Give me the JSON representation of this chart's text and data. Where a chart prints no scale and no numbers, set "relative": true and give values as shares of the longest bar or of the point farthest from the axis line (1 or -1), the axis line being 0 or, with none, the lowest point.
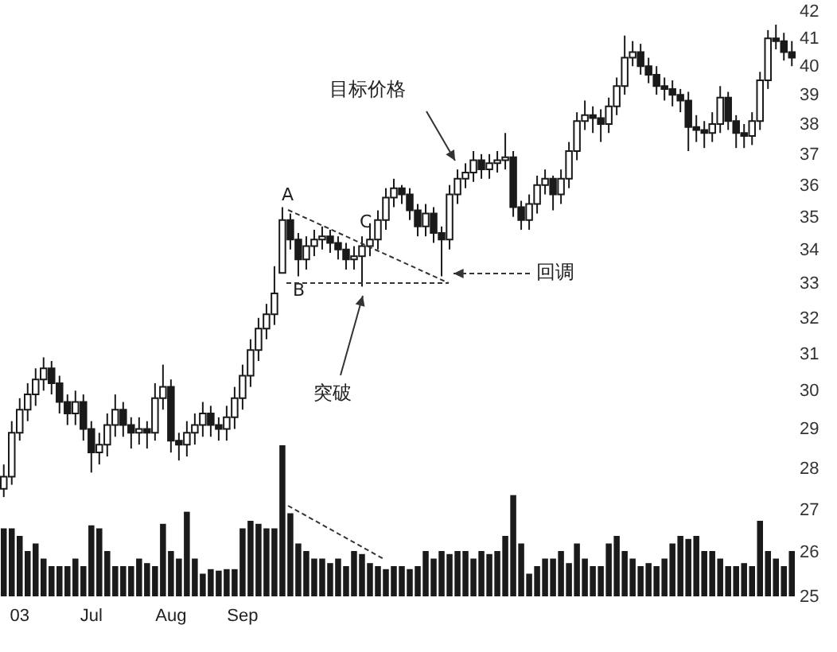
{
  "chart_data": [
    {
      "type": "candlestick",
      "color": "#1a1a1a",
      "log": true,
      "ylim": [
        25,
        42
      ],
      "yticks": [
        25,
        26,
        27,
        28,
        29,
        30,
        31,
        32,
        33,
        34,
        35,
        36,
        37,
        38,
        39,
        40,
        41,
        42
      ],
      "annotations": [
        "A",
        "B",
        "C",
        "目标价格",
        "突破",
        "回调"
      ],
      "categories": [
        null,
        null,
        "03",
        null,
        null,
        null,
        null,
        null,
        null,
        null,
        null,
        "Jul",
        null,
        null,
        null,
        null,
        null,
        null,
        null,
        null,
        null,
        "Aug",
        null,
        null,
        null,
        null,
        null,
        null,
        null,
        null,
        "Sep",
        null,
        null,
        null,
        null,
        null,
        null,
        null,
        null,
        null,
        null,
        null,
        null,
        null,
        null,
        null,
        null,
        null,
        null,
        null,
        null,
        null,
        null,
        null,
        null,
        null,
        null,
        null,
        null,
        null,
        null,
        null,
        null,
        null,
        null,
        null,
        null,
        null,
        null,
        null,
        null,
        null,
        null,
        null,
        null,
        null,
        null,
        null,
        null,
        null,
        null,
        null,
        null,
        null,
        null,
        null,
        null,
        null,
        null,
        null,
        null,
        null,
        null,
        null,
        null,
        null,
        null,
        null,
        null,
        null
      ],
      "ohlc": [
        [
          27.5,
          28.1,
          27.3,
          27.8
        ],
        [
          27.8,
          29.2,
          27.6,
          28.9
        ],
        [
          28.9,
          29.8,
          28.7,
          29.5
        ],
        [
          29.5,
          30.2,
          29.2,
          29.9
        ],
        [
          29.9,
          30.6,
          29.6,
          30.3
        ],
        [
          30.3,
          30.9,
          30.0,
          30.6
        ],
        [
          30.6,
          30.8,
          29.9,
          30.2
        ],
        [
          30.2,
          30.4,
          29.4,
          29.7
        ],
        [
          29.7,
          29.9,
          29.1,
          29.4
        ],
        [
          29.4,
          30.0,
          29.1,
          29.7
        ],
        [
          29.7,
          29.9,
          28.7,
          29.0
        ],
        [
          29.0,
          29.2,
          27.9,
          28.4
        ],
        [
          28.4,
          28.9,
          28.1,
          28.6
        ],
        [
          28.6,
          29.4,
          28.3,
          29.1
        ],
        [
          29.1,
          29.9,
          28.8,
          29.5
        ],
        [
          29.5,
          29.7,
          28.8,
          29.1
        ],
        [
          29.1,
          29.3,
          28.5,
          28.9
        ],
        [
          28.9,
          29.3,
          28.6,
          29.0
        ],
        [
          29.0,
          29.2,
          28.5,
          28.9
        ],
        [
          28.9,
          30.2,
          28.7,
          29.8
        ],
        [
          29.8,
          30.7,
          29.5,
          30.1
        ],
        [
          30.1,
          30.3,
          28.4,
          28.7
        ],
        [
          28.7,
          28.9,
          28.2,
          28.6
        ],
        [
          28.6,
          29.2,
          28.3,
          28.9
        ],
        [
          28.9,
          29.4,
          28.6,
          29.1
        ],
        [
          29.1,
          29.7,
          28.8,
          29.4
        ],
        [
          29.4,
          29.6,
          28.8,
          29.1
        ],
        [
          29.1,
          29.3,
          28.7,
          29.0
        ],
        [
          29.0,
          29.6,
          28.7,
          29.3
        ],
        [
          29.3,
          30.1,
          29.0,
          29.8
        ],
        [
          29.8,
          30.7,
          29.5,
          30.4
        ],
        [
          30.4,
          31.4,
          30.1,
          31.1
        ],
        [
          31.1,
          32.0,
          30.8,
          31.7
        ],
        [
          31.7,
          32.4,
          31.4,
          32.1
        ],
        [
          32.1,
          33.5,
          31.8,
          32.7
        ],
        [
          33.3,
          35.3,
          33.3,
          34.9
        ],
        [
          34.9,
          35.1,
          34.0,
          34.3
        ],
        [
          34.3,
          34.5,
          33.2,
          33.7
        ],
        [
          33.7,
          34.4,
          33.4,
          34.1
        ],
        [
          34.1,
          34.6,
          33.8,
          34.3
        ],
        [
          34.3,
          34.7,
          34.0,
          34.4
        ],
        [
          34.4,
          34.6,
          33.9,
          34.2
        ],
        [
          34.2,
          34.4,
          33.7,
          34.0
        ],
        [
          34.0,
          34.2,
          33.4,
          33.7
        ],
        [
          33.7,
          34.1,
          33.4,
          33.8
        ],
        [
          33.8,
          34.4,
          32.9,
          34.1
        ],
        [
          34.1,
          34.8,
          33.8,
          34.3
        ],
        [
          34.3,
          35.2,
          34.0,
          34.9
        ],
        [
          34.9,
          35.9,
          34.6,
          35.6
        ],
        [
          35.6,
          36.2,
          35.3,
          35.9
        ],
        [
          35.9,
          36.0,
          35.4,
          35.7
        ],
        [
          35.7,
          35.9,
          34.9,
          35.2
        ],
        [
          35.2,
          35.4,
          34.4,
          34.7
        ],
        [
          34.7,
          35.4,
          34.4,
          35.1
        ],
        [
          35.1,
          35.3,
          34.2,
          34.5
        ],
        [
          34.5,
          34.7,
          33.2,
          34.3
        ],
        [
          34.3,
          36.0,
          34.0,
          35.7
        ],
        [
          35.7,
          36.5,
          35.4,
          36.2
        ],
        [
          36.2,
          36.7,
          35.9,
          36.4
        ],
        [
          36.4,
          37.1,
          36.1,
          36.8
        ],
        [
          36.8,
          37.0,
          36.2,
          36.5
        ],
        [
          36.5,
          37.0,
          36.2,
          36.7
        ],
        [
          36.7,
          37.1,
          36.4,
          36.8
        ],
        [
          36.8,
          37.7,
          36.5,
          36.9
        ],
        [
          36.9,
          37.1,
          35.0,
          35.3
        ],
        [
          35.3,
          35.5,
          34.6,
          34.9
        ],
        [
          34.9,
          35.7,
          34.6,
          35.4
        ],
        [
          35.4,
          36.3,
          35.1,
          36.0
        ],
        [
          36.0,
          36.5,
          35.7,
          36.2
        ],
        [
          36.2,
          36.3,
          35.2,
          35.7
        ],
        [
          35.7,
          36.5,
          35.4,
          36.2
        ],
        [
          36.2,
          37.4,
          35.9,
          37.1
        ],
        [
          37.1,
          38.4,
          36.8,
          38.1
        ],
        [
          38.1,
          38.8,
          37.8,
          38.3
        ],
        [
          38.3,
          38.6,
          37.7,
          38.2
        ],
        [
          38.2,
          38.5,
          37.4,
          38.0
        ],
        [
          38.0,
          38.9,
          37.7,
          38.6
        ],
        [
          38.6,
          39.6,
          38.3,
          39.3
        ],
        [
          39.3,
          41.1,
          39.0,
          40.3
        ],
        [
          40.3,
          40.9,
          40.0,
          40.5
        ],
        [
          40.5,
          40.8,
          39.7,
          40.0
        ],
        [
          40.0,
          40.3,
          39.4,
          39.7
        ],
        [
          39.7,
          40.0,
          39.0,
          39.3
        ],
        [
          39.3,
          39.6,
          38.8,
          39.2
        ],
        [
          39.2,
          39.5,
          38.6,
          39.0
        ],
        [
          39.0,
          39.2,
          38.4,
          38.8
        ],
        [
          38.8,
          39.1,
          37.1,
          37.9
        ],
        [
          37.9,
          38.3,
          37.4,
          37.8
        ],
        [
          37.8,
          38.1,
          37.2,
          37.7
        ],
        [
          37.7,
          38.4,
          37.4,
          38.0
        ],
        [
          38.0,
          39.3,
          37.7,
          38.9
        ],
        [
          38.9,
          39.1,
          37.8,
          38.1
        ],
        [
          38.1,
          38.3,
          37.2,
          37.7
        ],
        [
          37.7,
          38.0,
          37.2,
          37.6
        ],
        [
          37.6,
          38.4,
          37.3,
          38.1
        ],
        [
          38.1,
          39.8,
          37.8,
          39.5
        ],
        [
          39.5,
          41.3,
          39.2,
          41.0
        ],
        [
          41.0,
          41.5,
          40.6,
          40.9
        ],
        [
          40.9,
          41.2,
          40.2,
          40.5
        ],
        [
          40.5,
          40.9,
          40.0,
          40.3
        ]
      ]
    },
    {
      "type": "bar",
      "relative": true,
      "color": "#1a1a1a",
      "categories": [
        null,
        null,
        null,
        null,
        null,
        null,
        null,
        null,
        null,
        null,
        null,
        null,
        null,
        null,
        null,
        null,
        null,
        null,
        null,
        null,
        null,
        null,
        null,
        null,
        null,
        null,
        null,
        null,
        null,
        null,
        null,
        null,
        null,
        null,
        null,
        null,
        null,
        null,
        null,
        null,
        null,
        null,
        null,
        null,
        null,
        null,
        null,
        null,
        null,
        null,
        null,
        null,
        null,
        null,
        null,
        null,
        null,
        null,
        null,
        null,
        null,
        null,
        null,
        null,
        null,
        null,
        null,
        null,
        null,
        null,
        null,
        null,
        null,
        null,
        null,
        null,
        null,
        null,
        null,
        null,
        null,
        null,
        null,
        null,
        null,
        null,
        null,
        null,
        null,
        null,
        null,
        null,
        null,
        null,
        null,
        null,
        null,
        null,
        null,
        null
      ],
      "values": [
        0.45,
        0.45,
        0.4,
        0.3,
        0.35,
        0.25,
        0.2,
        0.2,
        0.2,
        0.25,
        0.2,
        0.47,
        0.45,
        0.3,
        0.2,
        0.2,
        0.2,
        0.25,
        0.22,
        0.2,
        0.48,
        0.3,
        0.25,
        0.56,
        0.25,
        0.15,
        0.18,
        0.17,
        0.18,
        0.18,
        0.45,
        0.5,
        0.48,
        0.45,
        0.45,
        1,
        0.55,
        0.35,
        0.3,
        0.25,
        0.25,
        0.22,
        0.25,
        0.2,
        0.3,
        0.28,
        0.22,
        0.2,
        0.18,
        0.2,
        0.2,
        0.18,
        0.2,
        0.3,
        0.25,
        0.3,
        0.28,
        0.3,
        0.3,
        0.25,
        0.3,
        0.28,
        0.3,
        0.4,
        0.67,
        0.35,
        0.15,
        0.2,
        0.25,
        0.25,
        0.3,
        0.22,
        0.35,
        0.25,
        0.2,
        0.2,
        0.35,
        0.4,
        0.3,
        0.25,
        0.2,
        0.22,
        0.2,
        0.25,
        0.35,
        0.4,
        0.38,
        0.4,
        0.3,
        0.3,
        0.25,
        0.2,
        0.2,
        0.22,
        0.2,
        0.5,
        0.3,
        0.25,
        0.2,
        0.3
      ]
    }
  ]
}
